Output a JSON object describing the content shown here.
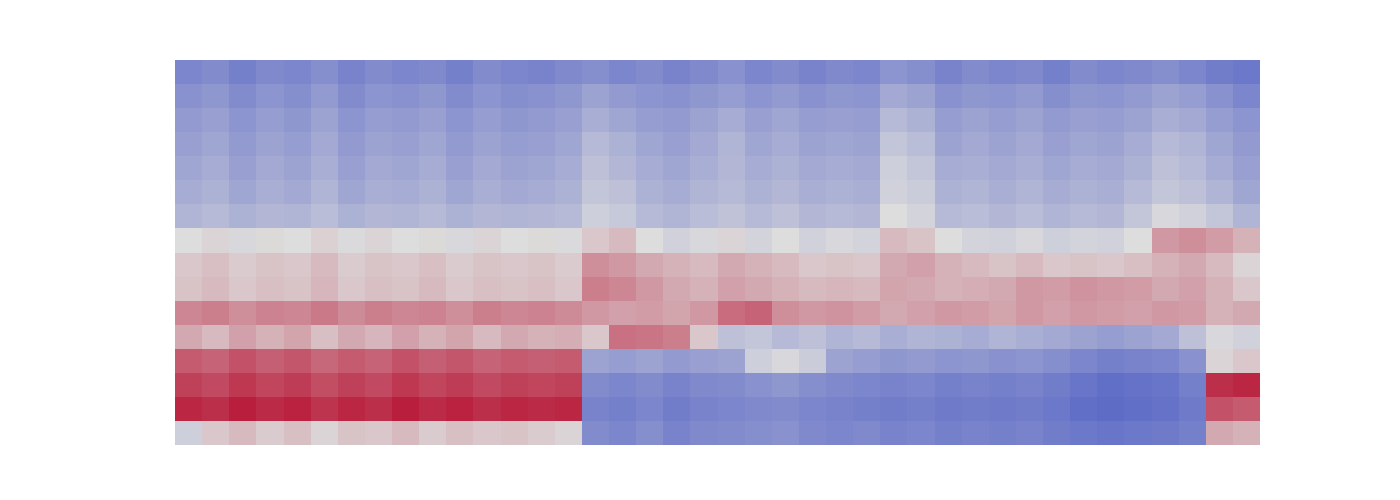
{
  "chart_data": {
    "type": "heatmap",
    "tick_labels": false,
    "color_range": [
      0,
      1
    ],
    "cells": [
      [
        0.2,
        0.22,
        0.18,
        0.21,
        0.2,
        0.23,
        0.19,
        0.22,
        0.2,
        0.21,
        0.18,
        0.22,
        0.2,
        0.19,
        0.21,
        0.23,
        0.2,
        0.22,
        0.19,
        0.21,
        0.24,
        0.2,
        0.22,
        0.19,
        0.21,
        0.2,
        0.25,
        0.23,
        0.19,
        0.22,
        0.2,
        0.21,
        0.18,
        0.22,
        0.2,
        0.21,
        0.23,
        0.2,
        0.17,
        0.15
      ],
      [
        0.24,
        0.26,
        0.22,
        0.25,
        0.23,
        0.27,
        0.22,
        0.25,
        0.24,
        0.26,
        0.22,
        0.25,
        0.23,
        0.24,
        0.26,
        0.3,
        0.27,
        0.25,
        0.24,
        0.26,
        0.28,
        0.25,
        0.27,
        0.24,
        0.26,
        0.25,
        0.32,
        0.3,
        0.24,
        0.26,
        0.25,
        0.27,
        0.23,
        0.26,
        0.25,
        0.27,
        0.3,
        0.28,
        0.24,
        0.2
      ],
      [
        0.27,
        0.29,
        0.25,
        0.28,
        0.26,
        0.3,
        0.25,
        0.28,
        0.27,
        0.29,
        0.25,
        0.28,
        0.26,
        0.27,
        0.29,
        0.34,
        0.31,
        0.28,
        0.27,
        0.3,
        0.33,
        0.29,
        0.31,
        0.28,
        0.29,
        0.28,
        0.38,
        0.35,
        0.28,
        0.3,
        0.28,
        0.3,
        0.27,
        0.29,
        0.28,
        0.3,
        0.34,
        0.32,
        0.28,
        0.25
      ],
      [
        0.29,
        0.31,
        0.27,
        0.3,
        0.28,
        0.32,
        0.27,
        0.3,
        0.29,
        0.31,
        0.27,
        0.3,
        0.28,
        0.29,
        0.31,
        0.38,
        0.35,
        0.31,
        0.29,
        0.32,
        0.36,
        0.31,
        0.33,
        0.3,
        0.31,
        0.3,
        0.42,
        0.39,
        0.3,
        0.32,
        0.3,
        0.32,
        0.29,
        0.31,
        0.3,
        0.33,
        0.38,
        0.36,
        0.31,
        0.27
      ],
      [
        0.31,
        0.33,
        0.29,
        0.32,
        0.3,
        0.34,
        0.29,
        0.32,
        0.31,
        0.33,
        0.29,
        0.32,
        0.3,
        0.31,
        0.33,
        0.4,
        0.37,
        0.33,
        0.31,
        0.34,
        0.37,
        0.33,
        0.35,
        0.32,
        0.33,
        0.32,
        0.45,
        0.42,
        0.33,
        0.34,
        0.32,
        0.34,
        0.31,
        0.33,
        0.32,
        0.35,
        0.4,
        0.38,
        0.33,
        0.29
      ],
      [
        0.33,
        0.35,
        0.31,
        0.34,
        0.32,
        0.36,
        0.31,
        0.34,
        0.33,
        0.35,
        0.31,
        0.34,
        0.32,
        0.33,
        0.35,
        0.42,
        0.4,
        0.35,
        0.33,
        0.36,
        0.38,
        0.35,
        0.37,
        0.34,
        0.35,
        0.34,
        0.46,
        0.44,
        0.35,
        0.36,
        0.34,
        0.36,
        0.33,
        0.35,
        0.34,
        0.38,
        0.42,
        0.4,
        0.36,
        0.31
      ],
      [
        0.36,
        0.38,
        0.35,
        0.37,
        0.36,
        0.39,
        0.35,
        0.37,
        0.36,
        0.38,
        0.35,
        0.37,
        0.36,
        0.37,
        0.38,
        0.45,
        0.43,
        0.38,
        0.36,
        0.39,
        0.41,
        0.38,
        0.4,
        0.37,
        0.38,
        0.37,
        0.5,
        0.47,
        0.38,
        0.39,
        0.37,
        0.39,
        0.36,
        0.38,
        0.37,
        0.42,
        0.48,
        0.46,
        0.42,
        0.36
      ],
      [
        0.5,
        0.52,
        0.48,
        0.51,
        0.5,
        0.53,
        0.49,
        0.52,
        0.5,
        0.51,
        0.48,
        0.52,
        0.5,
        0.51,
        0.49,
        0.55,
        0.58,
        0.5,
        0.46,
        0.48,
        0.52,
        0.47,
        0.5,
        0.46,
        0.48,
        0.47,
        0.58,
        0.56,
        0.5,
        0.47,
        0.46,
        0.48,
        0.45,
        0.47,
        0.46,
        0.5,
        0.66,
        0.68,
        0.65,
        0.6
      ],
      [
        0.55,
        0.57,
        0.54,
        0.56,
        0.55,
        0.58,
        0.54,
        0.56,
        0.55,
        0.57,
        0.54,
        0.56,
        0.55,
        0.56,
        0.54,
        0.68,
        0.66,
        0.62,
        0.6,
        0.58,
        0.62,
        0.6,
        0.58,
        0.55,
        0.56,
        0.55,
        0.62,
        0.64,
        0.6,
        0.58,
        0.56,
        0.58,
        0.55,
        0.56,
        0.55,
        0.57,
        0.6,
        0.62,
        0.58,
        0.52
      ],
      [
        0.56,
        0.58,
        0.55,
        0.57,
        0.56,
        0.59,
        0.55,
        0.57,
        0.56,
        0.58,
        0.55,
        0.57,
        0.56,
        0.57,
        0.55,
        0.72,
        0.7,
        0.66,
        0.62,
        0.6,
        0.64,
        0.62,
        0.6,
        0.58,
        0.59,
        0.58,
        0.63,
        0.62,
        0.6,
        0.61,
        0.62,
        0.66,
        0.65,
        0.67,
        0.66,
        0.65,
        0.62,
        0.64,
        0.6,
        0.55
      ],
      [
        0.7,
        0.72,
        0.68,
        0.71,
        0.7,
        0.73,
        0.69,
        0.72,
        0.7,
        0.71,
        0.68,
        0.72,
        0.7,
        0.71,
        0.69,
        0.66,
        0.64,
        0.65,
        0.63,
        0.66,
        0.76,
        0.78,
        0.68,
        0.66,
        0.67,
        0.65,
        0.62,
        0.64,
        0.66,
        0.65,
        0.63,
        0.66,
        0.64,
        0.66,
        0.65,
        0.64,
        0.66,
        0.65,
        0.6,
        0.62
      ],
      [
        0.62,
        0.58,
        0.64,
        0.6,
        0.63,
        0.57,
        0.62,
        0.59,
        0.64,
        0.6,
        0.63,
        0.58,
        0.62,
        0.6,
        0.61,
        0.55,
        0.75,
        0.74,
        0.72,
        0.55,
        0.4,
        0.42,
        0.38,
        0.4,
        0.36,
        0.38,
        0.34,
        0.36,
        0.35,
        0.33,
        0.36,
        0.34,
        0.32,
        0.3,
        0.28,
        0.3,
        0.32,
        0.4,
        0.48,
        0.46
      ],
      [
        0.8,
        0.78,
        0.82,
        0.79,
        0.81,
        0.77,
        0.8,
        0.78,
        0.82,
        0.79,
        0.81,
        0.78,
        0.8,
        0.79,
        0.8,
        0.3,
        0.28,
        0.3,
        0.27,
        0.29,
        0.3,
        0.45,
        0.48,
        0.44,
        0.3,
        0.28,
        0.26,
        0.27,
        0.25,
        0.26,
        0.24,
        0.25,
        0.23,
        0.2,
        0.18,
        0.19,
        0.2,
        0.24,
        0.52,
        0.55
      ],
      [
        0.86,
        0.84,
        0.88,
        0.85,
        0.87,
        0.83,
        0.86,
        0.84,
        0.88,
        0.85,
        0.87,
        0.84,
        0.86,
        0.85,
        0.86,
        0.22,
        0.2,
        0.22,
        0.19,
        0.21,
        0.22,
        0.24,
        0.26,
        0.23,
        0.21,
        0.2,
        0.19,
        0.2,
        0.18,
        0.19,
        0.18,
        0.19,
        0.17,
        0.14,
        0.12,
        0.13,
        0.14,
        0.18,
        0.9,
        0.92
      ],
      [
        0.92,
        0.9,
        0.94,
        0.91,
        0.93,
        0.89,
        0.92,
        0.9,
        0.94,
        0.91,
        0.93,
        0.9,
        0.92,
        0.91,
        0.92,
        0.19,
        0.18,
        0.2,
        0.17,
        0.19,
        0.2,
        0.21,
        0.22,
        0.2,
        0.19,
        0.18,
        0.17,
        0.18,
        0.16,
        0.17,
        0.16,
        0.17,
        0.15,
        0.12,
        0.11,
        0.12,
        0.13,
        0.16,
        0.82,
        0.8
      ],
      [
        0.45,
        0.55,
        0.58,
        0.54,
        0.57,
        0.52,
        0.56,
        0.55,
        0.58,
        0.54,
        0.57,
        0.55,
        0.56,
        0.54,
        0.52,
        0.22,
        0.2,
        0.23,
        0.19,
        0.21,
        0.22,
        0.23,
        0.24,
        0.21,
        0.2,
        0.21,
        0.19,
        0.2,
        0.18,
        0.19,
        0.18,
        0.19,
        0.17,
        0.15,
        0.14,
        0.15,
        0.16,
        0.18,
        0.62,
        0.6
      ]
    ]
  }
}
